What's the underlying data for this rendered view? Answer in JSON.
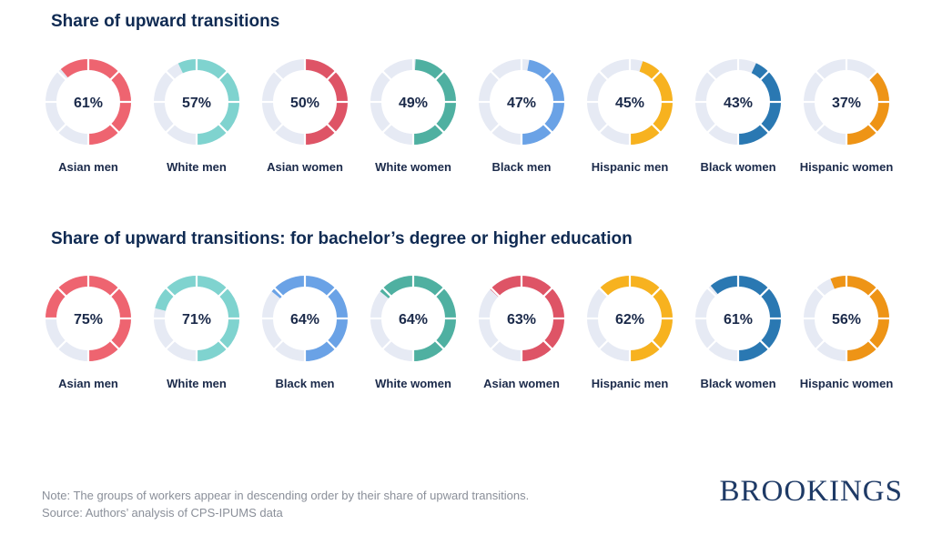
{
  "colors": {
    "track": "#e6eaf4",
    "asian_men": "#ee6470",
    "white_men": "#7fd3cf",
    "asian_women": "#de5466",
    "white_women": "#4fb0a1",
    "black_men": "#6aa2e6",
    "hispanic_men": "#f7b21f",
    "black_women": "#2a78b2",
    "hispanic_women": "#ee9416"
  },
  "chart_data": [
    {
      "type": "donut",
      "title": "Share of upward transitions",
      "unit": "%",
      "segments_per_ring": 8,
      "series": [
        {
          "name": "Asian men",
          "value": 61,
          "label": "61%",
          "color_key": "asian_men"
        },
        {
          "name": "White men",
          "value": 57,
          "label": "57%",
          "color_key": "white_men"
        },
        {
          "name": "Asian women",
          "value": 50,
          "label": "50%",
          "color_key": "asian_women"
        },
        {
          "name": "White women",
          "value": 49,
          "label": "49%",
          "color_key": "white_women"
        },
        {
          "name": "Black men",
          "value": 47,
          "label": "47%",
          "color_key": "black_men"
        },
        {
          "name": "Hispanic men",
          "value": 45,
          "label": "45%",
          "color_key": "hispanic_men"
        },
        {
          "name": "Black women",
          "value": 43,
          "label": "43%",
          "color_key": "black_women"
        },
        {
          "name": "Hispanic women",
          "value": 37,
          "label": "37%",
          "color_key": "hispanic_women"
        }
      ]
    },
    {
      "type": "donut",
      "title": "Share of upward transitions: for bachelor’s degree or higher education",
      "unit": "%",
      "segments_per_ring": 8,
      "series": [
        {
          "name": "Asian men",
          "value": 75,
          "label": "75%",
          "color_key": "asian_men"
        },
        {
          "name": "White men",
          "value": 71,
          "label": "71%",
          "color_key": "white_men"
        },
        {
          "name": "Black men",
          "value": 64,
          "label": "64%",
          "color_key": "black_men"
        },
        {
          "name": "White women",
          "value": 64,
          "label": "64%",
          "color_key": "white_women"
        },
        {
          "name": "Asian women",
          "value": 63,
          "label": "63%",
          "color_key": "asian_women"
        },
        {
          "name": "Hispanic men",
          "value": 62,
          "label": "62%",
          "color_key": "hispanic_men"
        },
        {
          "name": "Black women",
          "value": 61,
          "label": "61%",
          "color_key": "black_women"
        },
        {
          "name": "Hispanic women",
          "value": 56,
          "label": "56%",
          "color_key": "hispanic_women"
        }
      ]
    }
  ],
  "footer": {
    "note": "Note: The groups of workers appear in descending order by their share of upward transitions.",
    "source": "Source: Authors’ analysis of CPS-IPUMS data"
  },
  "logo": {
    "text": "BROOKINGS"
  }
}
